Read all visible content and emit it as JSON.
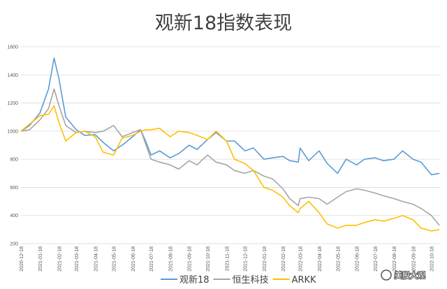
{
  "watermark": "美股大观",
  "chart_data": {
    "type": "line",
    "title": "观新18指数表现",
    "xlabel": "",
    "ylabel": "",
    "ylim": [
      200,
      1600
    ],
    "yticks": [
      200,
      400,
      600,
      800,
      1000,
      1200,
      1400,
      1600
    ],
    "grid": true,
    "legend_position": "bottom",
    "x_tick_labels": [
      "2020-12-18",
      "2021-01-18",
      "2021-02-18",
      "2021-03-18",
      "2021-04-18",
      "2021-05-18",
      "2021-06-18",
      "2021-07-18",
      "2021-08-18",
      "2021-09-18",
      "2021-10-18",
      "2021-11-18",
      "2021-12-18",
      "2022-01-18",
      "2022-02-18",
      "2022-03-18",
      "2022-04-18",
      "2022-05-18",
      "2022-06-18",
      "2022-07-18",
      "2022-08-18",
      "2022-09-18",
      "2022-10-18"
    ],
    "x": [
      "2020-12-18",
      "2021-01-01",
      "2021-01-18",
      "2021-02-01",
      "2021-02-10",
      "2021-02-18",
      "2021-03-01",
      "2021-03-18",
      "2021-04-01",
      "2021-04-18",
      "2021-05-01",
      "2021-05-18",
      "2021-06-01",
      "2021-06-18",
      "2021-07-01",
      "2021-07-10",
      "2021-07-18",
      "2021-08-01",
      "2021-08-18",
      "2021-09-01",
      "2021-09-18",
      "2021-10-01",
      "2021-10-18",
      "2021-11-01",
      "2021-11-18",
      "2021-12-01",
      "2021-12-18",
      "2022-01-01",
      "2022-01-18",
      "2022-02-01",
      "2022-02-18",
      "2022-03-01",
      "2022-03-15",
      "2022-03-18",
      "2022-04-01",
      "2022-04-18",
      "2022-05-01",
      "2022-05-18",
      "2022-06-01",
      "2022-06-18",
      "2022-07-01",
      "2022-07-18",
      "2022-08-01",
      "2022-08-18",
      "2022-09-01",
      "2022-09-18",
      "2022-10-01",
      "2022-10-18",
      "2022-10-31"
    ],
    "series": [
      {
        "name": "观新18",
        "color": "#5b9bd5",
        "values": [
          1000,
          1040,
          1130,
          1300,
          1520,
          1370,
          1100,
          1010,
          970,
          975,
          920,
          860,
          900,
          960,
          1010,
          920,
          830,
          860,
          810,
          840,
          900,
          870,
          940,
          990,
          930,
          930,
          860,
          880,
          800,
          810,
          820,
          790,
          780,
          880,
          790,
          860,
          770,
          700,
          800,
          760,
          800,
          810,
          790,
          800,
          860,
          800,
          780,
          690,
          700
        ]
      },
      {
        "name": "恒生科技",
        "color": "#a5a5a5",
        "values": [
          1000,
          1010,
          1080,
          1160,
          1300,
          1180,
          1040,
          990,
          1000,
          990,
          1000,
          1040,
          960,
          990,
          1010,
          900,
          800,
          780,
          760,
          730,
          790,
          760,
          830,
          780,
          760,
          720,
          700,
          720,
          680,
          660,
          590,
          520,
          470,
          520,
          530,
          520,
          480,
          530,
          570,
          590,
          580,
          560,
          540,
          520,
          500,
          480,
          450,
          400,
          330
        ]
      },
      {
        "name": "ARKK",
        "color": "#ffc000",
        "values": [
          1000,
          1050,
          1110,
          1120,
          1180,
          1060,
          930,
          990,
          1000,
          960,
          850,
          830,
          950,
          970,
          1000,
          1010,
          1010,
          1020,
          960,
          1000,
          990,
          970,
          940,
          1000,
          930,
          800,
          770,
          720,
          600,
          580,
          530,
          470,
          420,
          450,
          500,
          420,
          340,
          310,
          330,
          330,
          350,
          370,
          360,
          380,
          400,
          370,
          310,
          290,
          300
        ]
      }
    ]
  }
}
